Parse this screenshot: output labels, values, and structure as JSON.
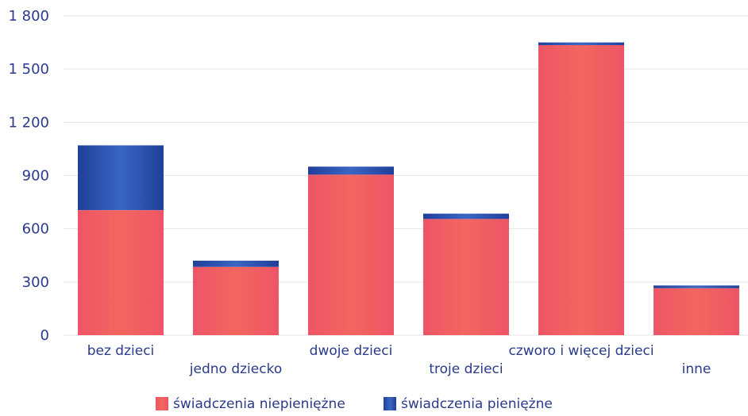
{
  "chart_data": {
    "type": "bar",
    "stacked": true,
    "categories": [
      "bez dzieci",
      "jedno dziecko",
      "dwoje dzieci",
      "troje dzieci",
      "czworo i więcej dzieci",
      "inne"
    ],
    "series": [
      {
        "name": "świadczenia niepieniężne",
        "values": [
          705,
          385,
          905,
          655,
          1635,
          265
        ],
        "color": "#ec5060"
      },
      {
        "name": "świadczenia pieniężne",
        "values": [
          365,
          35,
          45,
          30,
          15,
          15
        ],
        "color": "#2448a4"
      }
    ],
    "yticks": [
      0,
      300,
      600,
      900,
      1200,
      1500,
      1800
    ],
    "ytick_labels": [
      "0",
      "300",
      "600",
      "900",
      "1 200",
      "1 500",
      "1 800"
    ],
    "ylim": [
      0,
      1800
    ],
    "grid": true,
    "legend_position": "bottom",
    "title": "",
    "xlabel": "",
    "ylabel": ""
  }
}
